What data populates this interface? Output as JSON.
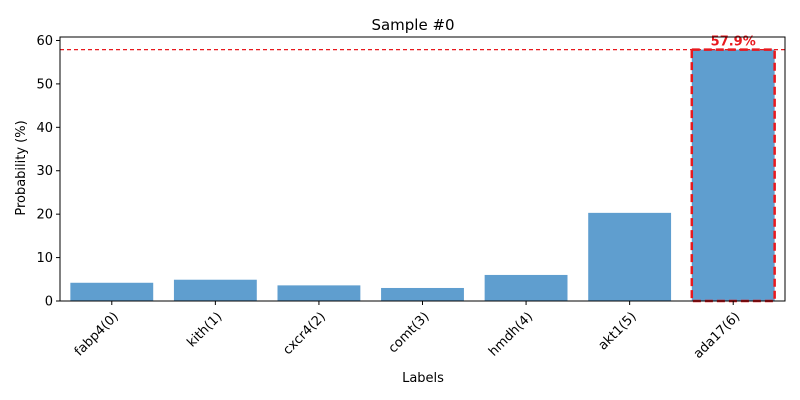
{
  "chart_data": {
    "type": "bar",
    "title": "Sample #0",
    "xlabel": "Labels",
    "ylabel": "Probability (%)",
    "categories": [
      "fabp4(0)",
      "kith(1)",
      "cxcr4(2)",
      "comt(3)",
      "hmdh(4)",
      "akt1(5)",
      "ada17(6)"
    ],
    "values": [
      4.2,
      4.9,
      3.6,
      3.0,
      6.0,
      20.3,
      57.9
    ],
    "ylim": [
      0,
      60.8
    ],
    "yticks": [
      0,
      10,
      20,
      30,
      40,
      50,
      60
    ],
    "grid": false,
    "bar_color": "#5f9ecf",
    "highlight": {
      "index": 6,
      "label": "57.9%",
      "color": "#e8191e",
      "reference_line_value": 57.9
    }
  }
}
